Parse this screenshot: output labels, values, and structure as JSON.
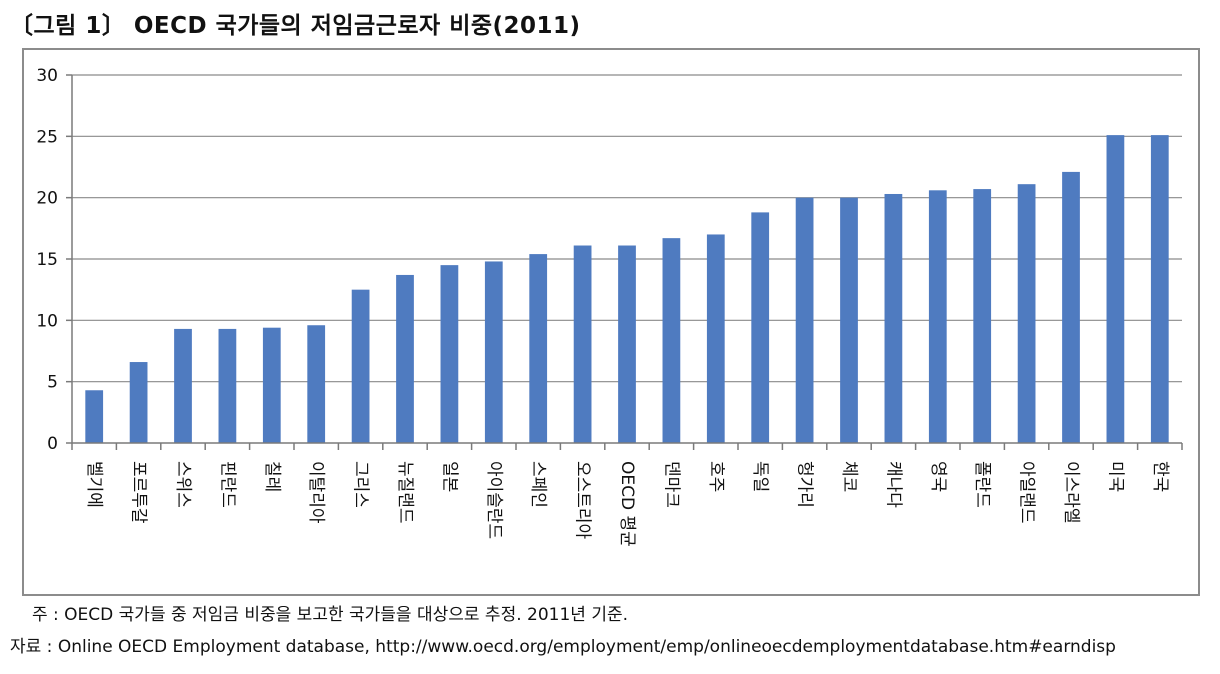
{
  "figure": {
    "title": "〔그림 1〕 OECD 국가들의 저임금근로자 비중(2011)",
    "note": "주 : OECD 국가들 중 저임금 비중을 보고한 국가들을 대상으로 추정. 2011년 기준.",
    "source": "자료 : Online OECD Employment database, http://www.oecd.org/employment/emp/onlineoecdemploymentdatabase.htm#earndisp"
  },
  "chart_data": {
    "type": "bar",
    "title": "〔그림 1〕 OECD 국가들의 저임금근로자 비중(2011)",
    "xlabel": "",
    "ylabel": "",
    "ylim": [
      0,
      30
    ],
    "yticks": [
      0,
      5,
      10,
      15,
      20,
      25,
      30
    ],
    "grid": true,
    "legend": "none",
    "bar_color": "#4f7bc0",
    "categories": [
      "벨기에",
      "포르투갈",
      "스위스",
      "핀란드",
      "칠레",
      "이탈리아",
      "그리스",
      "뉴질랜드",
      "일본",
      "아이슬란드",
      "스페인",
      "오스트리아",
      "OECD 평균",
      "덴마크",
      "호주",
      "독일",
      "헝가리",
      "체코",
      "캐나다",
      "영국",
      "폴란드",
      "아일랜드",
      "이스라엘",
      "미국",
      "한국"
    ],
    "values": [
      4.3,
      6.6,
      9.3,
      9.3,
      9.4,
      9.6,
      12.5,
      13.7,
      14.5,
      14.8,
      15.4,
      16.1,
      16.1,
      16.7,
      17.0,
      18.8,
      20.0,
      20.0,
      20.3,
      20.6,
      20.7,
      21.1,
      22.1,
      25.1,
      25.1
    ]
  }
}
